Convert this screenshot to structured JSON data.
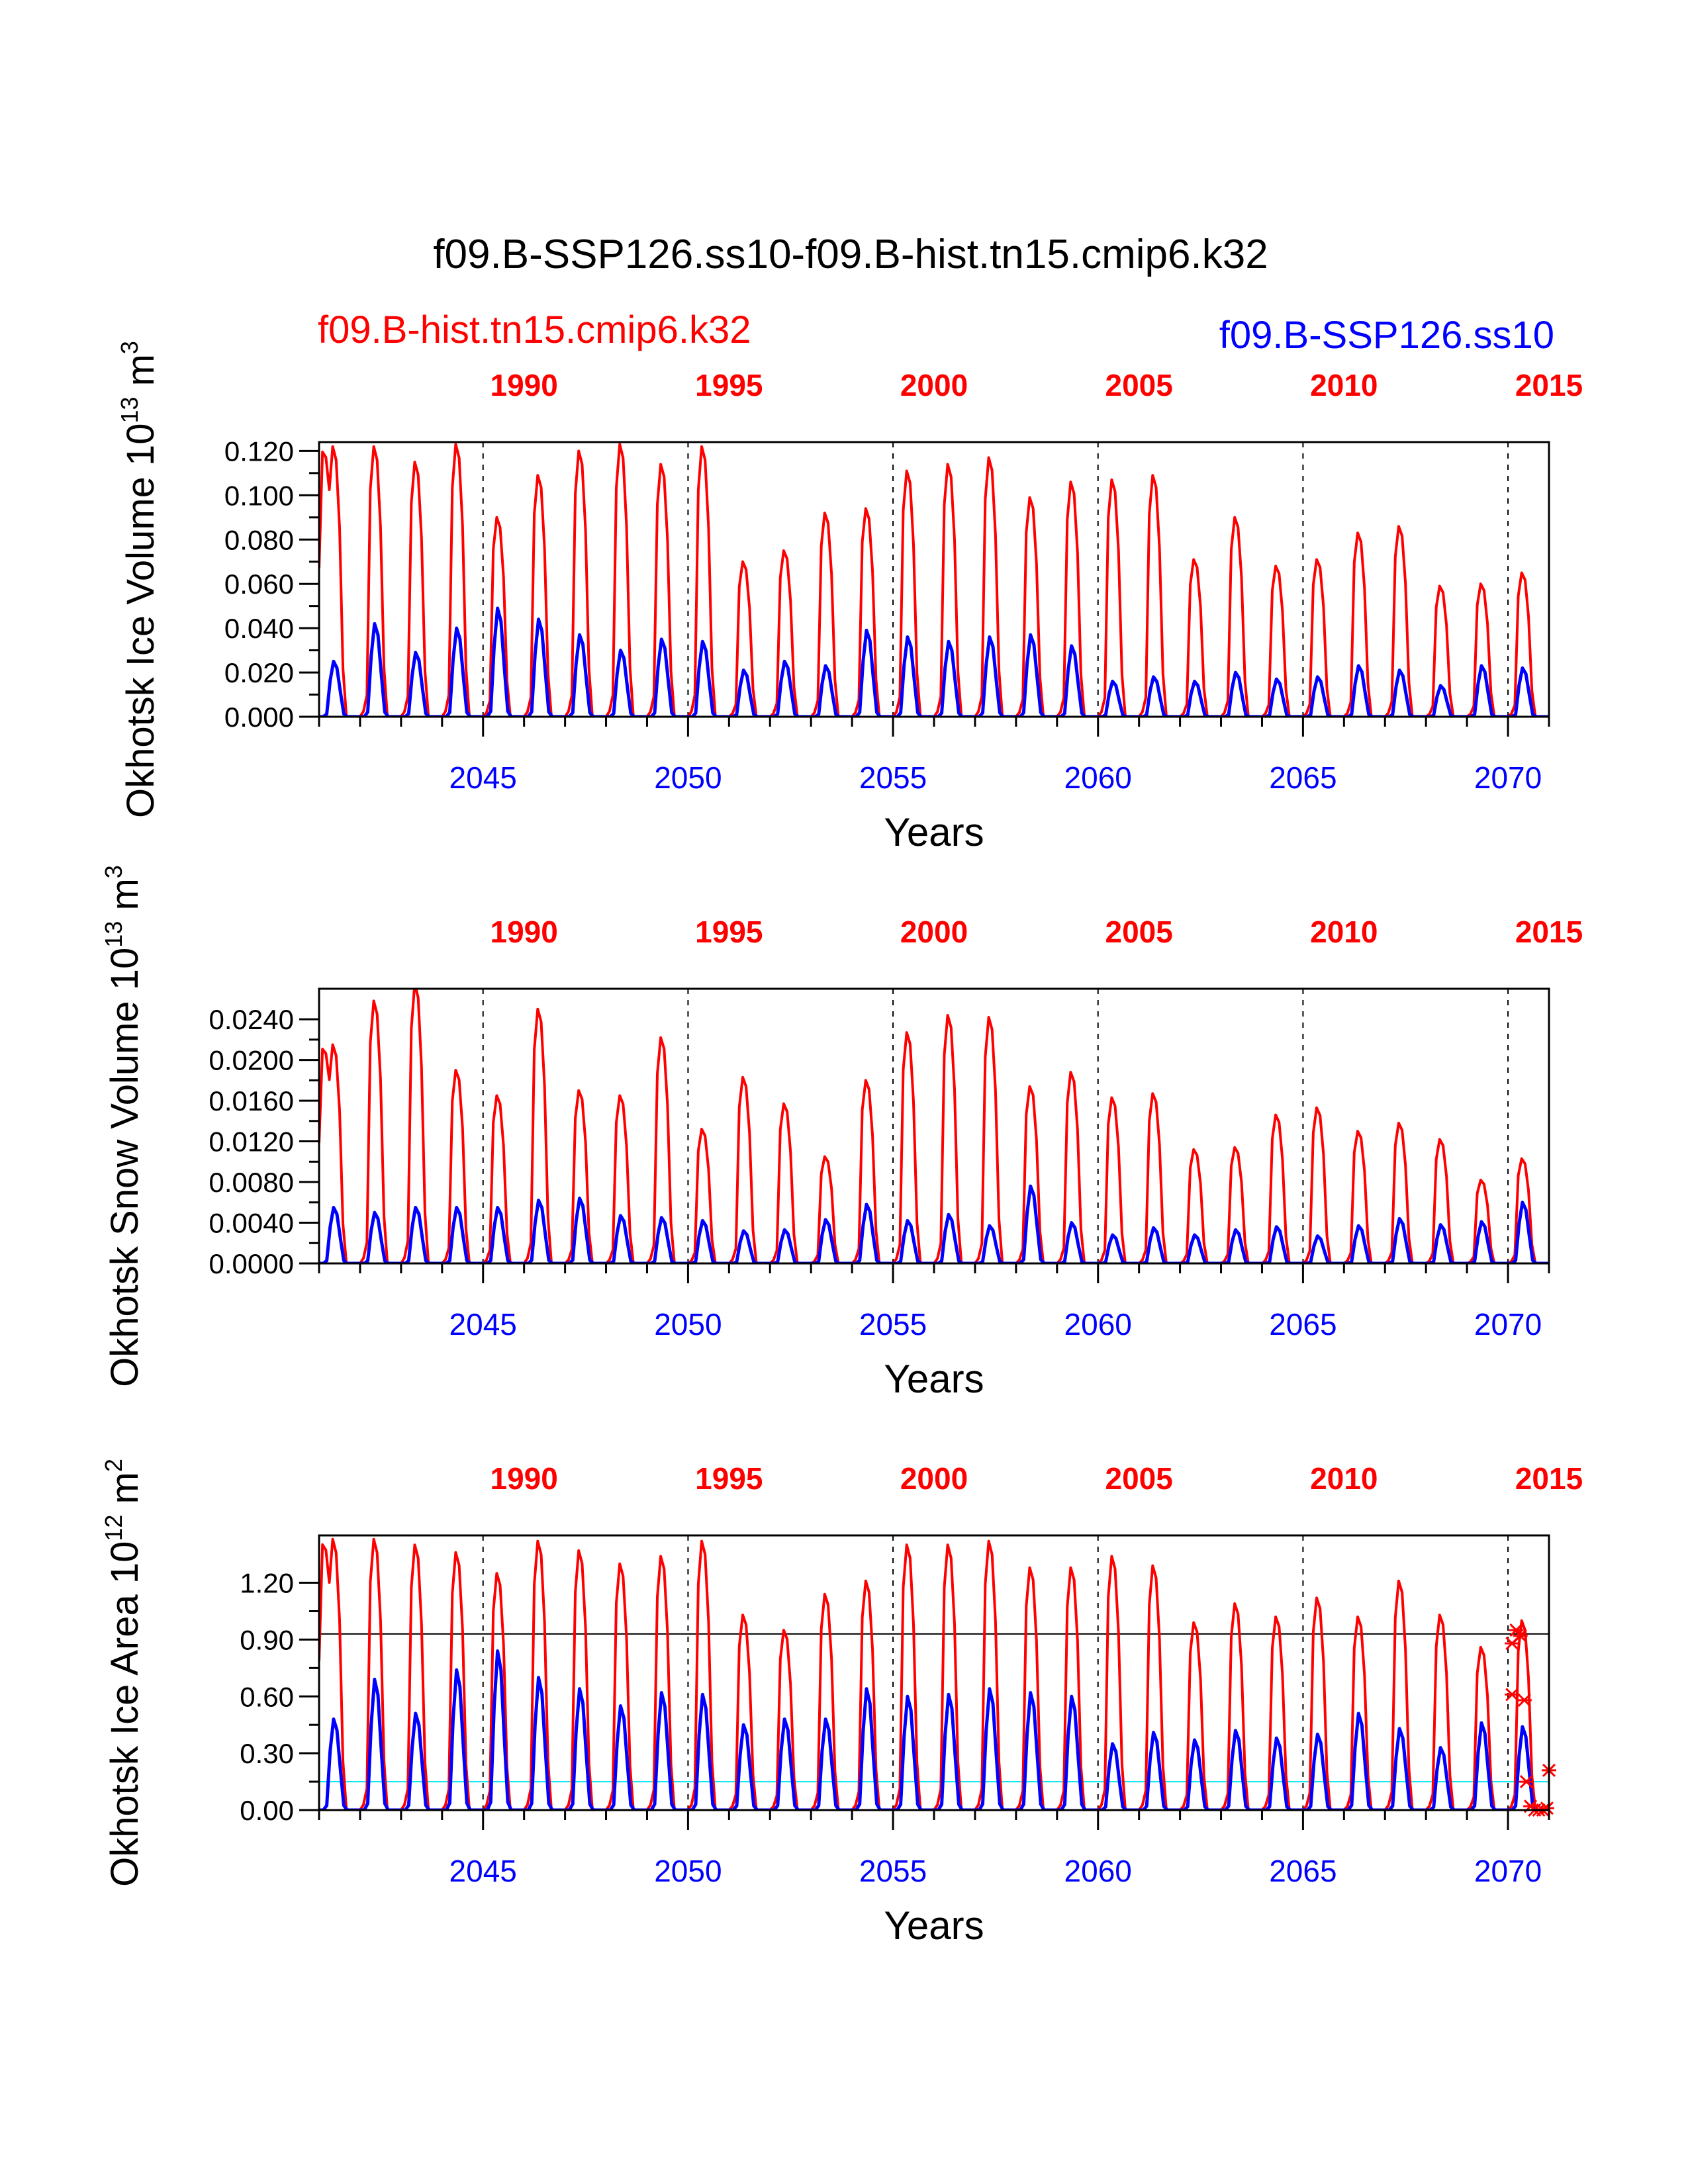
{
  "figure": {
    "title": "f09.B-SSP126.ss10-f09.B-hist.tn15.cmip6.k32",
    "legend_left": "f09.B-hist.tn15.cmip6.k32",
    "legend_right": "f09.B-SSP126.ss10",
    "colors": {
      "hist": "#ff0000",
      "ssp": "#0000ff",
      "ref_line": "#000000",
      "cyan_line": "#00e5ee"
    }
  },
  "chart_data": [
    {
      "type": "line",
      "ylabel": "Okhotsk Ice Volume 10",
      "ylabel_exp": "13",
      "ylabel_unit": "m",
      "ylabel_unit_exp": "3",
      "xlabel": "Years",
      "xlim": [
        2041,
        2071
      ],
      "top_xlim": [
        1985,
        2015
      ],
      "x_ticklabels": [
        "2045",
        "2050",
        "2055",
        "2060",
        "2065",
        "2070"
      ],
      "top_ticklabels": [
        "1990",
        "1995",
        "2000",
        "2005",
        "2010",
        "2015"
      ],
      "ylim": [
        0,
        0.124
      ],
      "yticks": [
        "0.000",
        "0.020",
        "0.040",
        "0.060",
        "0.080",
        "0.100",
        "0.120"
      ],
      "ytick_values": [
        0,
        0.02,
        0.04,
        0.06,
        0.08,
        0.1,
        0.12
      ],
      "series": [
        {
          "name": "f09.B-hist.tn15.cmip6.k32",
          "color": "#ff0000",
          "annual_peaks": [
            0.122,
            0.122,
            0.115,
            0.123,
            0.09,
            0.109,
            0.12,
            0.123,
            0.114,
            0.122,
            0.07,
            0.075,
            0.092,
            0.094,
            0.111,
            0.114,
            0.117,
            0.099,
            0.106,
            0.107,
            0.109,
            0.071,
            0.09,
            0.068,
            0.071,
            0.083,
            0.086,
            0.059,
            0.06,
            0.065
          ]
        },
        {
          "name": "f09.B-SSP126.ss10",
          "color": "#0000ff",
          "annual_peaks": [
            0.025,
            0.042,
            0.029,
            0.04,
            0.049,
            0.044,
            0.037,
            0.03,
            0.035,
            0.034,
            0.021,
            0.025,
            0.023,
            0.039,
            0.036,
            0.034,
            0.036,
            0.037,
            0.032,
            0.016,
            0.018,
            0.016,
            0.02,
            0.017,
            0.018,
            0.023,
            0.021,
            0.014,
            0.023,
            0.022
          ]
        }
      ]
    },
    {
      "type": "line",
      "ylabel": "Okhotsk Snow Volume 10",
      "ylabel_exp": "13",
      "ylabel_unit": "m",
      "ylabel_unit_exp": "3",
      "xlabel": "Years",
      "xlim": [
        2041,
        2071
      ],
      "top_xlim": [
        1985,
        2015
      ],
      "x_ticklabels": [
        "2045",
        "2050",
        "2055",
        "2060",
        "2065",
        "2070"
      ],
      "top_ticklabels": [
        "1990",
        "1995",
        "2000",
        "2005",
        "2010",
        "2015"
      ],
      "ylim": [
        0,
        0.027
      ],
      "yticks": [
        "0.0000",
        "0.0040",
        "0.0080",
        "0.0120",
        "0.0160",
        "0.0200",
        "0.0240"
      ],
      "ytick_values": [
        0,
        0.004,
        0.008,
        0.012,
        0.016,
        0.02,
        0.024
      ],
      "series": [
        {
          "name": "f09.B-hist.tn15.cmip6.k32",
          "color": "#ff0000",
          "annual_peaks": [
            0.0215,
            0.0258,
            0.0275,
            0.019,
            0.0165,
            0.025,
            0.017,
            0.0165,
            0.0222,
            0.0132,
            0.0183,
            0.0157,
            0.0105,
            0.018,
            0.0227,
            0.0244,
            0.0242,
            0.0174,
            0.0188,
            0.0163,
            0.0167,
            0.0112,
            0.0114,
            0.0146,
            0.0153,
            0.013,
            0.0138,
            0.0122,
            0.0082,
            0.0103
          ]
        },
        {
          "name": "f09.B-SSP126.ss10",
          "color": "#0000ff",
          "annual_peaks": [
            0.0055,
            0.005,
            0.0055,
            0.0055,
            0.0055,
            0.0062,
            0.0064,
            0.0047,
            0.0045,
            0.0042,
            0.0032,
            0.0033,
            0.0043,
            0.0058,
            0.0042,
            0.0048,
            0.0037,
            0.0076,
            0.004,
            0.0028,
            0.0035,
            0.0028,
            0.0033,
            0.0036,
            0.0027,
            0.0037,
            0.0044,
            0.0038,
            0.0041,
            0.006
          ]
        }
      ]
    },
    {
      "type": "line",
      "ylabel": "Okhotsk Ice Area 10",
      "ylabel_exp": "12",
      "ylabel_unit": "m",
      "ylabel_unit_exp": "2",
      "xlabel": "Years",
      "xlim": [
        2041,
        2071
      ],
      "top_xlim": [
        1985,
        2015
      ],
      "x_ticklabels": [
        "2045",
        "2050",
        "2055",
        "2060",
        "2065",
        "2070"
      ],
      "top_ticklabels": [
        "1990",
        "1995",
        "2000",
        "2005",
        "2010",
        "2015"
      ],
      "ylim": [
        0,
        1.45
      ],
      "yticks": [
        "0.00",
        "0.30",
        "0.60",
        "0.90",
        "1.20"
      ],
      "ytick_values": [
        0,
        0.3,
        0.6,
        0.9,
        1.2
      ],
      "hline_black": 0.93,
      "hline_cyan": 0.15,
      "series": [
        {
          "name": "f09.B-hist.tn15.cmip6.k32",
          "color": "#ff0000",
          "annual_peaks": [
            1.43,
            1.43,
            1.4,
            1.36,
            1.25,
            1.42,
            1.37,
            1.3,
            1.34,
            1.42,
            1.03,
            0.95,
            1.14,
            1.21,
            1.4,
            1.4,
            1.42,
            1.28,
            1.28,
            1.34,
            1.29,
            0.99,
            1.09,
            1.02,
            1.12,
            1.02,
            1.21,
            1.03,
            0.86,
            1.0
          ]
        },
        {
          "name": "f09.B-SSP126.ss10",
          "color": "#0000ff",
          "annual_peaks": [
            0.48,
            0.69,
            0.51,
            0.74,
            0.84,
            0.7,
            0.64,
            0.55,
            0.62,
            0.61,
            0.45,
            0.48,
            0.48,
            0.64,
            0.6,
            0.61,
            0.64,
            0.62,
            0.6,
            0.35,
            0.41,
            0.37,
            0.42,
            0.38,
            0.4,
            0.51,
            0.43,
            0.33,
            0.46,
            0.44
          ]
        }
      ],
      "markers": {
        "color": "#ff0000",
        "points": [
          [
            2070.1,
            0.88
          ],
          [
            2070.2,
            0.95
          ],
          [
            2070.3,
            0.92
          ],
          [
            2070.1,
            0.61
          ],
          [
            2070.4,
            0.58
          ],
          [
            2070.45,
            0.15
          ],
          [
            2070.55,
            0.02
          ],
          [
            2070.65,
            0.0
          ],
          [
            2070.75,
            0.0
          ],
          [
            2070.85,
            0.0
          ],
          [
            2070.95,
            0.01
          ],
          [
            2071.0,
            0.21
          ]
        ]
      }
    }
  ]
}
